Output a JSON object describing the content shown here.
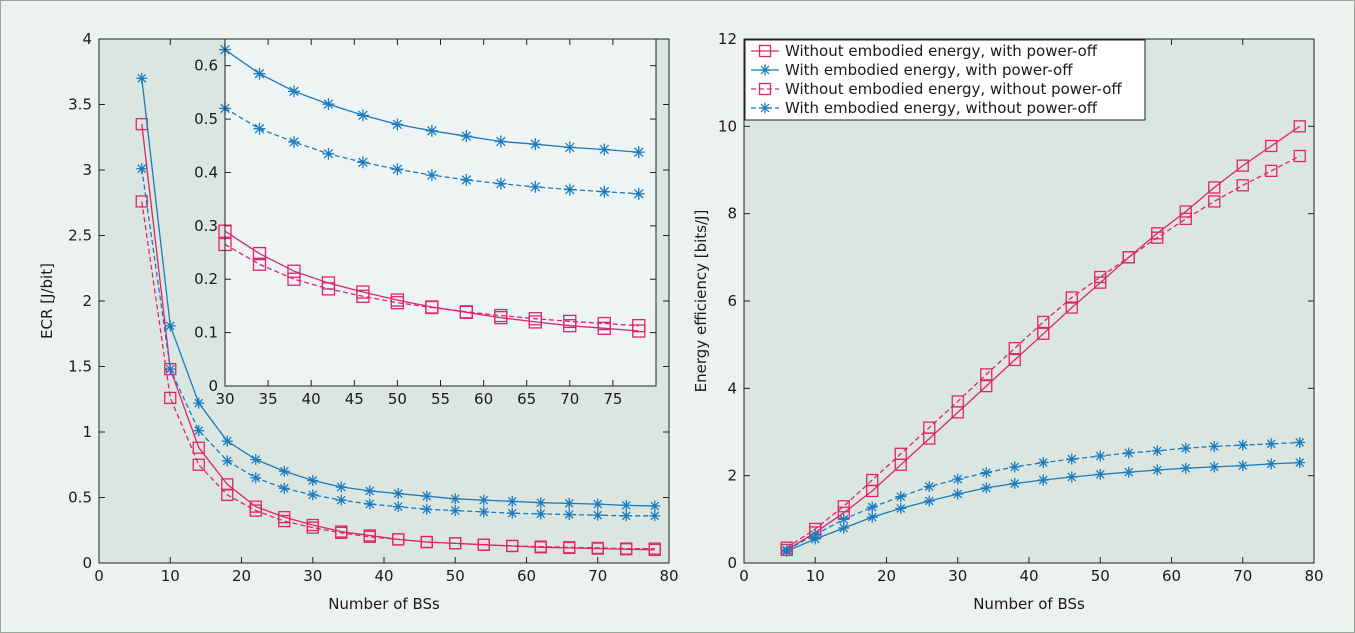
{
  "colors": {
    "pink": "#e0246a",
    "blue": "#1a7bbf",
    "plot_bg": "#dce6e1",
    "inset_bg": "#edf4f3"
  },
  "chart_data": [
    {
      "type": "line",
      "id": "left",
      "xlabel": "Number of BSs",
      "ylabel": "ECR [J/bit]",
      "xlim": [
        0,
        80
      ],
      "ylim": [
        0,
        4
      ],
      "xticks": [
        0,
        10,
        20,
        30,
        40,
        50,
        60,
        70,
        80
      ],
      "yticks": [
        0,
        0.5,
        1,
        1.5,
        2,
        2.5,
        3,
        3.5,
        4
      ],
      "ytick_labels": [
        "0",
        "0.5",
        "1",
        "1.5",
        "2",
        "2.5",
        "3",
        "3.5",
        "4"
      ],
      "grid": false,
      "series": [
        {
          "color": "pink",
          "dash": false,
          "marker": "square",
          "x": [
            6,
            10,
            14,
            18,
            22,
            26,
            30,
            34,
            38,
            42,
            46,
            50,
            54,
            58,
            62,
            66,
            70,
            74,
            78
          ],
          "y": [
            3.35,
            1.48,
            0.88,
            0.6,
            0.43,
            0.35,
            0.29,
            0.24,
            0.21,
            0.18,
            0.16,
            0.15,
            0.14,
            0.13,
            0.12,
            0.115,
            0.11,
            0.105,
            0.1
          ]
        },
        {
          "color": "pink",
          "dash": true,
          "marker": "square",
          "x": [
            6,
            10,
            14,
            18,
            22,
            26,
            30,
            34,
            38,
            42,
            46,
            50,
            54,
            58,
            62,
            66,
            70,
            74,
            78
          ],
          "y": [
            2.76,
            1.26,
            0.75,
            0.52,
            0.4,
            0.32,
            0.27,
            0.23,
            0.2,
            0.18,
            0.16,
            0.15,
            0.14,
            0.13,
            0.125,
            0.12,
            0.115,
            0.11,
            0.11
          ]
        },
        {
          "color": "blue",
          "dash": false,
          "marker": "star",
          "x": [
            6,
            10,
            14,
            18,
            22,
            26,
            30,
            34,
            38,
            42,
            46,
            50,
            54,
            58,
            62,
            66,
            70,
            74,
            78
          ],
          "y": [
            3.7,
            1.81,
            1.22,
            0.93,
            0.79,
            0.7,
            0.63,
            0.58,
            0.55,
            0.53,
            0.51,
            0.49,
            0.48,
            0.47,
            0.46,
            0.455,
            0.45,
            0.44,
            0.435
          ]
        },
        {
          "color": "blue",
          "dash": true,
          "marker": "star",
          "x": [
            6,
            10,
            14,
            18,
            22,
            26,
            30,
            34,
            38,
            42,
            46,
            50,
            54,
            58,
            62,
            66,
            70,
            74,
            78
          ],
          "y": [
            3.01,
            1.48,
            1.01,
            0.78,
            0.65,
            0.57,
            0.52,
            0.48,
            0.45,
            0.43,
            0.41,
            0.4,
            0.39,
            0.38,
            0.375,
            0.37,
            0.365,
            0.36,
            0.36
          ]
        }
      ],
      "inset": {
        "xlim": [
          30,
          80
        ],
        "ylim": [
          0,
          0.65
        ],
        "xticks": [
          30,
          35,
          40,
          45,
          50,
          55,
          60,
          65,
          70,
          75
        ],
        "yticks": [
          0,
          0.1,
          0.2,
          0.3,
          0.4,
          0.5,
          0.6
        ],
        "ytick_labels": [
          "0",
          "0.1",
          "0.2",
          "0.3",
          "0.4",
          "0.5",
          "0.6"
        ],
        "series": [
          {
            "color": "blue",
            "dash": false,
            "marker": "star",
            "x": [
              30,
              34,
              38,
              42,
              46,
              50,
              54,
              58,
              62,
              66,
              70,
              74,
              78
            ],
            "y": [
              0.63,
              0.585,
              0.552,
              0.528,
              0.507,
              0.49,
              0.478,
              0.468,
              0.458,
              0.453,
              0.447,
              0.443,
              0.438
            ]
          },
          {
            "color": "blue",
            "dash": true,
            "marker": "star",
            "x": [
              30,
              34,
              38,
              42,
              46,
              50,
              54,
              58,
              62,
              66,
              70,
              74,
              78
            ],
            "y": [
              0.52,
              0.482,
              0.457,
              0.435,
              0.419,
              0.406,
              0.395,
              0.386,
              0.379,
              0.373,
              0.368,
              0.364,
              0.36
            ]
          },
          {
            "color": "pink",
            "dash": false,
            "marker": "square",
            "x": [
              30,
              34,
              38,
              42,
              46,
              50,
              54,
              58,
              62,
              66,
              70,
              74,
              78
            ],
            "y": [
              0.29,
              0.248,
              0.215,
              0.193,
              0.176,
              0.161,
              0.148,
              0.138,
              0.128,
              0.12,
              0.113,
              0.108,
              0.103
            ]
          },
          {
            "color": "pink",
            "dash": true,
            "marker": "square",
            "x": [
              30,
              34,
              38,
              42,
              46,
              50,
              54,
              58,
              62,
              66,
              70,
              74,
              78
            ],
            "y": [
              0.265,
              0.228,
              0.2,
              0.182,
              0.168,
              0.156,
              0.147,
              0.139,
              0.132,
              0.126,
              0.121,
              0.117,
              0.113
            ]
          }
        ]
      }
    },
    {
      "type": "line",
      "id": "right",
      "xlabel": "Number of BSs",
      "ylabel": "Energy efficiency [bits/J]",
      "xlim": [
        0,
        80
      ],
      "ylim": [
        0,
        12
      ],
      "xticks": [
        0,
        10,
        20,
        30,
        40,
        50,
        60,
        70,
        80
      ],
      "yticks": [
        0,
        2,
        4,
        6,
        8,
        10,
        12
      ],
      "ytick_labels": [
        "0",
        "2",
        "4",
        "6",
        "8",
        "10",
        "12"
      ],
      "grid": false,
      "legend": "top-left",
      "series": [
        {
          "name": "Without embodied energy, with power-off",
          "color": "pink",
          "dash": false,
          "marker": "square",
          "x": [
            6,
            10,
            14,
            18,
            22,
            26,
            30,
            34,
            38,
            42,
            46,
            50,
            54,
            58,
            62,
            66,
            70,
            74,
            78
          ],
          "y": [
            0.3,
            0.7,
            1.15,
            1.65,
            2.25,
            2.85,
            3.45,
            4.05,
            4.65,
            5.25,
            5.85,
            6.42,
            7.0,
            7.55,
            8.05,
            8.6,
            9.1,
            9.55,
            10.0
          ]
        },
        {
          "name": "With embodied energy, with power-off",
          "color": "blue",
          "dash": false,
          "marker": "star",
          "x": [
            6,
            10,
            14,
            18,
            22,
            26,
            30,
            34,
            38,
            42,
            46,
            50,
            54,
            58,
            62,
            66,
            70,
            74,
            78
          ],
          "y": [
            0.27,
            0.55,
            0.8,
            1.05,
            1.25,
            1.42,
            1.58,
            1.72,
            1.82,
            1.9,
            1.97,
            2.03,
            2.08,
            2.13,
            2.17,
            2.2,
            2.23,
            2.27,
            2.3
          ]
        },
        {
          "name": "Without embodied energy, without power-off",
          "color": "pink",
          "dash": true,
          "marker": "square",
          "x": [
            6,
            10,
            14,
            18,
            22,
            26,
            30,
            34,
            38,
            42,
            46,
            50,
            54,
            58,
            62,
            66,
            70,
            74,
            78
          ],
          "y": [
            0.35,
            0.78,
            1.3,
            1.9,
            2.5,
            3.1,
            3.7,
            4.32,
            4.92,
            5.52,
            6.08,
            6.55,
            7.0,
            7.45,
            7.88,
            8.28,
            8.65,
            8.98,
            9.32
          ]
        },
        {
          "name": "With embodied energy, without power-off",
          "color": "blue",
          "dash": true,
          "marker": "star",
          "x": [
            6,
            10,
            14,
            18,
            22,
            26,
            30,
            34,
            38,
            42,
            46,
            50,
            54,
            58,
            62,
            66,
            70,
            74,
            78
          ],
          "y": [
            0.3,
            0.65,
            1.0,
            1.28,
            1.52,
            1.75,
            1.92,
            2.07,
            2.2,
            2.3,
            2.38,
            2.45,
            2.52,
            2.57,
            2.63,
            2.67,
            2.7,
            2.73,
            2.76
          ]
        }
      ]
    }
  ]
}
